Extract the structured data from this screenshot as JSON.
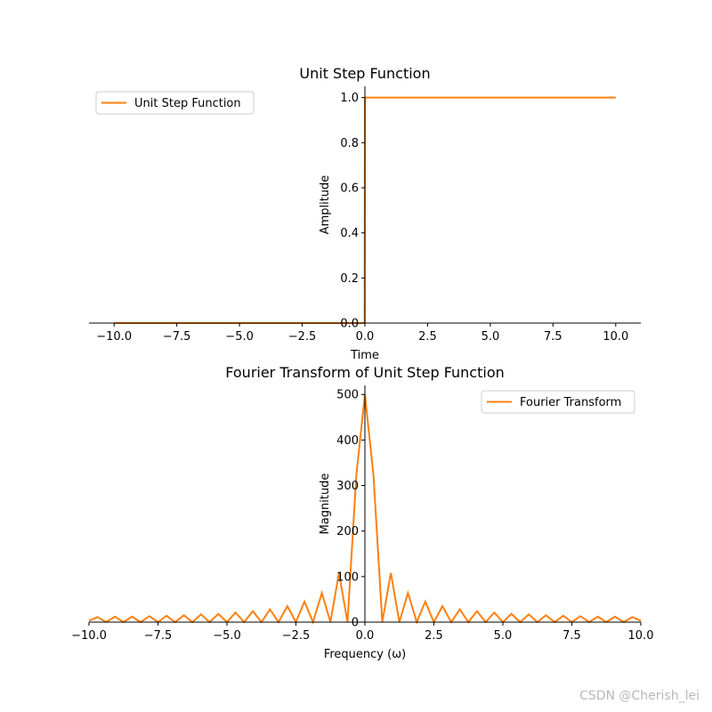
{
  "watermark": "CSDN @Cherish_lei",
  "colors": {
    "series": "#ff7f0e",
    "axis": "#000000",
    "background": "#ffffff"
  },
  "chart_data": [
    {
      "type": "line",
      "title": "Unit Step Function",
      "xlabel": "Time",
      "ylabel": "Amplitude",
      "xlim": [
        -11,
        11
      ],
      "ylim": [
        0,
        1.05
      ],
      "xticks": [
        -10,
        -7.5,
        -5,
        -2.5,
        0,
        2.5,
        5,
        7.5,
        10
      ],
      "xtick_labels": [
        "−10.0",
        "−7.5",
        "−5.0",
        "−2.5",
        "0.0",
        "2.5",
        "5.0",
        "7.5",
        "10.0"
      ],
      "yticks": [
        0,
        0.2,
        0.4,
        0.6,
        0.8,
        1.0
      ],
      "ytick_labels": [
        "0.0",
        "0.2",
        "0.4",
        "0.6",
        "0.8",
        "1.0"
      ],
      "grid": false,
      "legend_position": "top-left",
      "series": [
        {
          "name": "Unit Step Function",
          "color": "#ff7f0e",
          "x": [
            -10,
            -0.01,
            0,
            10
          ],
          "y": [
            0,
            0,
            1,
            1
          ]
        }
      ]
    },
    {
      "type": "line",
      "title": "Fourier Transform of Unit Step Function",
      "xlabel": "Frequency (ω)",
      "ylabel": "Magnitude",
      "xlim": [
        -10,
        10
      ],
      "ylim": [
        0,
        520
      ],
      "xticks": [
        -10,
        -7.5,
        -5,
        -2.5,
        0,
        2.5,
        5,
        7.5,
        10
      ],
      "xtick_labels": [
        "−10.0",
        "−7.5",
        "−5.0",
        "−2.5",
        "0.0",
        "2.5",
        "5.0",
        "7.5",
        "10.0"
      ],
      "yticks": [
        0,
        100,
        200,
        300,
        400,
        500
      ],
      "ytick_labels": [
        "0",
        "100",
        "200",
        "300",
        "400",
        "500"
      ],
      "grid": false,
      "legend_position": "top-right",
      "series": [
        {
          "name": "Fourier Transform",
          "color": "#ff7f0e",
          "x": [
            -10.0,
            -9.69,
            -9.38,
            -9.06,
            -8.75,
            -8.44,
            -8.13,
            -7.81,
            -7.5,
            -7.19,
            -6.88,
            -6.56,
            -6.25,
            -5.94,
            -5.63,
            -5.31,
            -5.0,
            -4.69,
            -4.38,
            -4.06,
            -3.75,
            -3.44,
            -3.13,
            -2.81,
            -2.5,
            -2.19,
            -1.88,
            -1.56,
            -1.25,
            -0.94,
            -0.63,
            -0.31,
            0.0,
            0.31,
            0.63,
            0.94,
            1.25,
            1.56,
            1.88,
            2.19,
            2.5,
            2.81,
            3.13,
            3.44,
            3.75,
            4.06,
            4.38,
            4.69,
            5.0,
            5.31,
            5.63,
            5.94,
            6.25,
            6.56,
            6.88,
            7.19,
            7.5,
            7.81,
            8.13,
            8.44,
            8.75,
            9.06,
            9.38,
            9.69,
            10.0
          ],
          "y": [
            3,
            11,
            0,
            12,
            0,
            12,
            0,
            13,
            0,
            14,
            0,
            15,
            0,
            17,
            0,
            18,
            0,
            21,
            0,
            24,
            0,
            28,
            0,
            35,
            0,
            45,
            0,
            64,
            0,
            108,
            0,
            323,
            500,
            323,
            0,
            108,
            0,
            64,
            0,
            45,
            0,
            35,
            0,
            28,
            0,
            24,
            0,
            21,
            0,
            18,
            0,
            17,
            0,
            15,
            0,
            14,
            0,
            13,
            0,
            12,
            0,
            12,
            0,
            11,
            3
          ]
        }
      ]
    }
  ]
}
